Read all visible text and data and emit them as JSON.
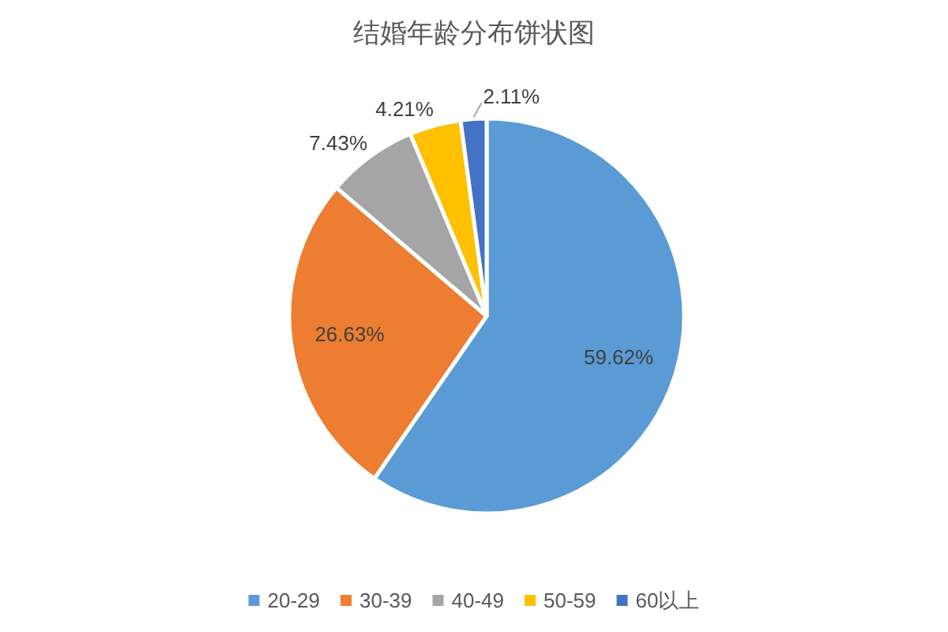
{
  "chart_data": {
    "type": "pie",
    "title": "结婚年龄分布饼状图",
    "categories": [
      "20-29",
      "30-39",
      "40-49",
      "50-59",
      "60以上"
    ],
    "values": [
      59.62,
      26.63,
      7.43,
      4.21,
      2.11
    ],
    "colors": [
      "#5b9bd5",
      "#ed7d31",
      "#a5a5a5",
      "#ffc000",
      "#4472c4"
    ],
    "value_labels": [
      "59.62%",
      "26.63%",
      "7.43%",
      "4.21%",
      "2.11%"
    ],
    "legend": "bottom"
  }
}
